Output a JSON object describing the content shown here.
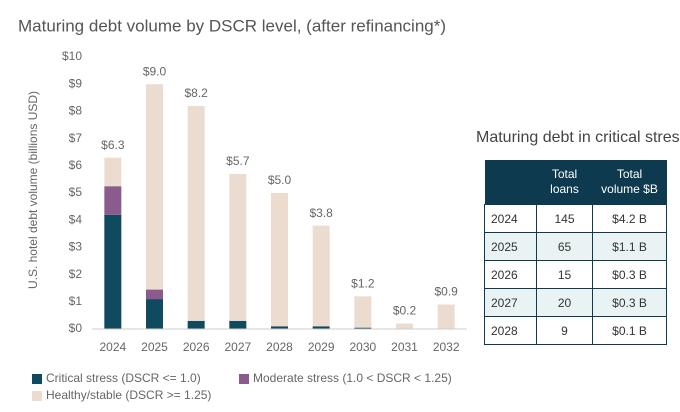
{
  "chart_data": {
    "type": "stacked_bar",
    "title": "Maturing debt volume by DSCR level, (after refinancing*)",
    "y_label": "U.S. hotel debt volume (billions USD)",
    "categories": [
      "2024",
      "2025",
      "2026",
      "2027",
      "2028",
      "2029",
      "2030",
      "2031",
      "2032"
    ],
    "series": [
      {
        "name": "Critical stress (DSCR <= 1.0)",
        "color": "#0f4a5e",
        "values": [
          4.2,
          1.1,
          0.3,
          0.3,
          0.1,
          0.1,
          0.05,
          0,
          0
        ]
      },
      {
        "name": "Moderate stress (1.0 < DSCR < 1.25)",
        "color": "#8b5b8e",
        "values": [
          1.05,
          0.35,
          0,
          0,
          0,
          0,
          0,
          0,
          0
        ]
      },
      {
        "name": "Healthy/stable (DSCR >= 1.25)",
        "color": "#ecdccf",
        "values": [
          1.05,
          7.55,
          7.9,
          5.4,
          4.9,
          3.7,
          1.15,
          0.2,
          0.9
        ]
      }
    ],
    "totals": {
      "values": [
        6.3,
        9.0,
        8.2,
        5.7,
        5.0,
        3.8,
        1.2,
        0.2,
        0.9
      ],
      "value_labels": [
        "$6.3",
        "$9.0",
        "$8.2",
        "$5.7",
        "$5.0",
        "$3.8",
        "$1.2",
        "$0.2",
        "$0.9"
      ]
    },
    "ylim": [
      0,
      10
    ],
    "yticks": [
      {
        "value": 0,
        "label": "$0"
      },
      {
        "value": 1,
        "label": "$1"
      },
      {
        "value": 2,
        "label": "$2"
      },
      {
        "value": 3,
        "label": "$3"
      },
      {
        "value": 4,
        "label": "$4"
      },
      {
        "value": 5,
        "label": "$5"
      },
      {
        "value": 6,
        "label": "$6"
      },
      {
        "value": 7,
        "label": "$7"
      },
      {
        "value": 8,
        "label": "$8"
      },
      {
        "value": 9,
        "label": "$9"
      },
      {
        "value": 10,
        "label": "$10"
      }
    ],
    "grid": false
  },
  "table": {
    "title": "Maturing debt in critical stress",
    "columns": [
      "Total loans",
      "Total volume $B"
    ],
    "rows": [
      [
        2024,
        145,
        "$4.2 B"
      ],
      [
        2025,
        65,
        "$1.1 B"
      ],
      [
        2026,
        15,
        "$0.3 B"
      ],
      [
        2027,
        20,
        "$0.3 B"
      ],
      [
        2028,
        9,
        "$0.1 B"
      ]
    ]
  }
}
